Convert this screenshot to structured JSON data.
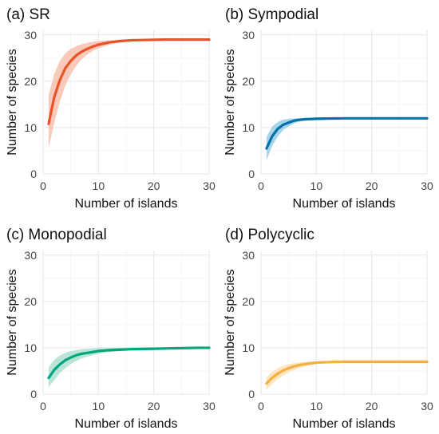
{
  "chart_data": [
    {
      "type": "line",
      "title": "(a) SR",
      "xlabel": "Number of islands",
      "ylabel": "Number of species",
      "xlim": [
        0,
        30
      ],
      "ylim": [
        0,
        31
      ],
      "xticks": [
        "0",
        "10",
        "20",
        "30"
      ],
      "yticks": [
        "0",
        "10",
        "20",
        "30"
      ],
      "color": "#e8532b",
      "band_color": "#f7b7a3",
      "grid": true,
      "x": [
        1,
        2,
        3,
        4,
        5,
        6,
        7,
        8,
        9,
        10,
        12,
        14,
        16,
        18,
        20,
        22,
        24,
        26,
        28,
        30
      ],
      "y": [
        10.8,
        16.5,
        20.2,
        22.8,
        24.4,
        25.6,
        26.4,
        27.0,
        27.5,
        27.9,
        28.4,
        28.7,
        28.85,
        28.9,
        28.95,
        29.0,
        29.0,
        29.0,
        29.0,
        29.0
      ],
      "lower": [
        5.5,
        11.0,
        15.5,
        19.0,
        21.5,
        23.4,
        24.8,
        25.8,
        26.6,
        27.1,
        27.9,
        28.4,
        28.7,
        28.8,
        28.9,
        29.0,
        29.0,
        29.0,
        29.0,
        29.0
      ],
      "upper": [
        17.0,
        21.5,
        24.3,
        26.0,
        27.0,
        27.6,
        28.0,
        28.3,
        28.5,
        28.7,
        28.85,
        28.95,
        29.0,
        29.0,
        29.0,
        29.0,
        29.0,
        29.0,
        29.0,
        29.0
      ]
    },
    {
      "type": "line",
      "title": "(b) Sympodial",
      "xlabel": "Number of islands",
      "ylabel": "Number of species",
      "xlim": [
        0,
        30
      ],
      "ylim": [
        0,
        31
      ],
      "xticks": [
        "0",
        "10",
        "20",
        "30"
      ],
      "yticks": [
        "0",
        "10",
        "20",
        "30"
      ],
      "color": "#0072a8",
      "band_color": "#8cc7e3",
      "grid": true,
      "x": [
        1,
        2,
        3,
        4,
        5,
        6,
        7,
        8,
        10,
        12,
        15,
        20,
        25,
        30
      ],
      "y": [
        5.5,
        8.1,
        9.7,
        10.6,
        11.1,
        11.5,
        11.7,
        11.8,
        11.9,
        11.95,
        12.0,
        12.0,
        12.0,
        12.0
      ],
      "lower": [
        3.0,
        6.0,
        8.0,
        9.5,
        10.3,
        10.9,
        11.3,
        11.5,
        11.8,
        11.9,
        12.0,
        12.0,
        12.0,
        12.0
      ],
      "upper": [
        8.0,
        10.2,
        11.2,
        11.7,
        11.9,
        12.0,
        12.0,
        12.0,
        12.0,
        12.0,
        12.0,
        12.0,
        12.0,
        12.0
      ]
    },
    {
      "type": "line",
      "title": "(c) Monopodial",
      "xlabel": "Number of islands",
      "ylabel": "Number of species",
      "xlim": [
        0,
        30
      ],
      "ylim": [
        0,
        31
      ],
      "xticks": [
        "0",
        "10",
        "20",
        "30"
      ],
      "yticks": [
        "0",
        "10",
        "20",
        "30"
      ],
      "color": "#00a67e",
      "band_color": "#a3dcc8",
      "grid": true,
      "x": [
        1,
        2,
        3,
        4,
        5,
        6,
        7,
        8,
        9,
        10,
        12,
        14,
        16,
        18,
        20,
        22,
        24,
        26,
        28,
        30
      ],
      "y": [
        3.5,
        5.2,
        6.4,
        7.3,
        7.9,
        8.4,
        8.7,
        8.9,
        9.1,
        9.3,
        9.5,
        9.6,
        9.7,
        9.75,
        9.8,
        9.85,
        9.9,
        9.95,
        10.0,
        10.0
      ],
      "lower": [
        1.5,
        3.0,
        4.5,
        5.6,
        6.5,
        7.2,
        7.7,
        8.1,
        8.4,
        8.7,
        9.1,
        9.3,
        9.5,
        9.6,
        9.7,
        9.8,
        9.85,
        9.9,
        10.0,
        10.0
      ],
      "upper": [
        5.8,
        7.4,
        8.3,
        8.9,
        9.3,
        9.5,
        9.7,
        9.8,
        9.85,
        9.9,
        9.95,
        10.0,
        10.0,
        10.0,
        10.0,
        10.0,
        10.0,
        10.0,
        10.0,
        10.0
      ]
    },
    {
      "type": "line",
      "title": "(d) Polycyclic",
      "xlabel": "Number of islands",
      "ylabel": "Number of species",
      "xlim": [
        0,
        30
      ],
      "ylim": [
        0,
        31
      ],
      "xticks": [
        "0",
        "10",
        "20",
        "30"
      ],
      "yticks": [
        "0",
        "10",
        "20",
        "30"
      ],
      "color": "#f5b041",
      "band_color": "#fbdcaa",
      "grid": true,
      "x": [
        1,
        2,
        3,
        4,
        5,
        6,
        7,
        8,
        10,
        12,
        15,
        20,
        25,
        30
      ],
      "y": [
        2.3,
        3.5,
        4.4,
        5.1,
        5.6,
        6.0,
        6.3,
        6.5,
        6.8,
        6.9,
        7.0,
        7.0,
        7.0,
        7.0
      ],
      "lower": [
        1.0,
        2.2,
        3.2,
        4.0,
        4.7,
        5.2,
        5.7,
        6.0,
        6.5,
        6.8,
        6.95,
        7.0,
        7.0,
        7.0
      ],
      "upper": [
        3.6,
        4.8,
        5.6,
        6.1,
        6.5,
        6.7,
        6.85,
        6.95,
        7.0,
        7.0,
        7.0,
        7.0,
        7.0,
        7.0
      ]
    }
  ]
}
